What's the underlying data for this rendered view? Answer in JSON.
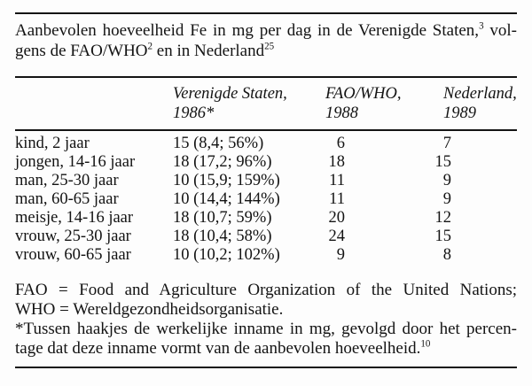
{
  "page": {
    "background_color": "#fdfdfd",
    "text_color": "#131313",
    "rule_color": "#141414"
  },
  "title": {
    "lines": [
      {
        "segments": [
          {
            "text": "Aanbevolen hoeveelheid Fe in mg per dag in de Verenigde Staten,",
            "sup": false
          },
          {
            "text": "3",
            "sup": true
          },
          {
            "text": " vol-",
            "sup": false
          }
        ]
      },
      {
        "segments": [
          {
            "text": "gens de FAO/WHO",
            "sup": false
          },
          {
            "text": "2",
            "sup": true
          },
          {
            "text": " en in Nederland",
            "sup": false
          },
          {
            "text": "25",
            "sup": true
          }
        ]
      }
    ]
  },
  "table": {
    "columns": [
      {
        "line1": "",
        "line2": ""
      },
      {
        "line1": "Verenigde Staten,",
        "line2": "1986*"
      },
      {
        "line1": "FAO/WHO,",
        "line2": "1988"
      },
      {
        "line1": "Nederland,",
        "line2": "1989"
      }
    ],
    "rows": [
      {
        "group": "kind, 2 jaar",
        "vs": "15 (8,4; 56%)",
        "fao": "6",
        "nl": "7"
      },
      {
        "group": "jongen, 14-16 jaar",
        "vs": "18 (17,2; 96%)",
        "fao": "18",
        "nl": "15"
      },
      {
        "group": "man, 25-30 jaar",
        "vs": "10 (15,9; 159%)",
        "fao": "11",
        "nl": "9"
      },
      {
        "group": "man, 60-65 jaar",
        "vs": "10 (14,4; 144%)",
        "fao": "11",
        "nl": "9"
      },
      {
        "group": "meisje, 14-16 jaar",
        "vs": "18 (10,7; 59%)",
        "fao": "20",
        "nl": "12"
      },
      {
        "group": "vrouw, 25-30 jaar",
        "vs": "18 (10,4; 58%)",
        "fao": "24",
        "nl": "15"
      },
      {
        "group": "vrouw, 60-65 jaar",
        "vs": "10 (10,2; 102%)",
        "fao": "9",
        "nl": "8"
      }
    ]
  },
  "notes": {
    "lines": [
      {
        "justify_last": true,
        "segments": [
          {
            "text": "FAO = Food and Agriculture Organization of the United Nations;",
            "sup": false
          }
        ]
      },
      {
        "justify_last": false,
        "segments": [
          {
            "text": "WHO = Wereldgezondheidsorganisatie.",
            "sup": false
          }
        ]
      },
      {
        "justify_last": true,
        "segments": [
          {
            "text": "*Tussen haakjes de werkelijke inname in mg, gevolgd door het percen-",
            "sup": false
          }
        ]
      },
      {
        "justify_last": false,
        "segments": [
          {
            "text": "tage dat deze inname vormt van de aanbevolen hoeveelheid.",
            "sup": false
          },
          {
            "text": "10",
            "sup": true
          }
        ]
      }
    ]
  }
}
